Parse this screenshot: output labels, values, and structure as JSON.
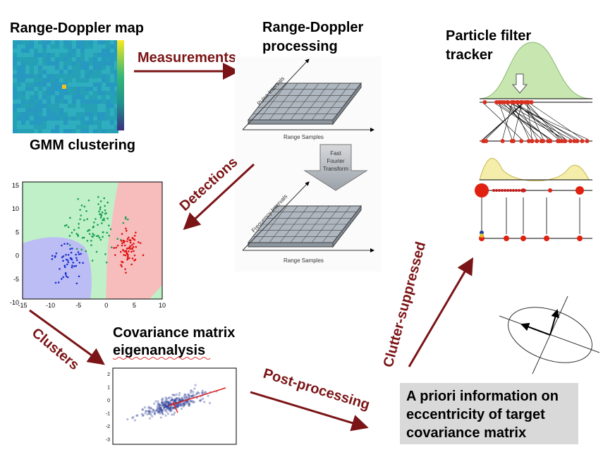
{
  "range_doppler_map": {
    "title": "Range-Doppler map"
  },
  "gmm_clustering": {
    "title": "GMM clustering",
    "y_ticks": [
      "15",
      "10",
      "5",
      "0",
      "-5",
      "-10"
    ],
    "x_ticks": [
      "-15",
      "-10",
      "-5",
      "0",
      "5",
      "10"
    ]
  },
  "arrows": {
    "measurements": "Measurements",
    "detections": "Detections",
    "clusters": "Clusters",
    "post_processing": "Post-processing",
    "clutter_suppressed": "Clutter-suppressed"
  },
  "range_doppler_processing": {
    "title_lines": [
      "Range-Doppler",
      "processing"
    ],
    "upper_axes": {
      "x": "Range Samples",
      "y": "Pulse Intervals"
    },
    "fft_lines": [
      "Fast",
      "Fourier",
      "Transform"
    ],
    "lower_axes": {
      "x": "Range Samples",
      "y": "Frequency Intervals"
    }
  },
  "particle_filter": {
    "title_lines": [
      "Particle filter",
      "tracker"
    ]
  },
  "covariance": {
    "title_lines": [
      "Covariance matrix",
      "eigenanalysis"
    ],
    "y_ticks": [
      "2",
      "1",
      "0",
      "-1",
      "-2",
      "-3"
    ]
  },
  "prior_box": {
    "lines": [
      "A priori information on",
      "eccentricity of target",
      "covariance matrix"
    ]
  }
}
